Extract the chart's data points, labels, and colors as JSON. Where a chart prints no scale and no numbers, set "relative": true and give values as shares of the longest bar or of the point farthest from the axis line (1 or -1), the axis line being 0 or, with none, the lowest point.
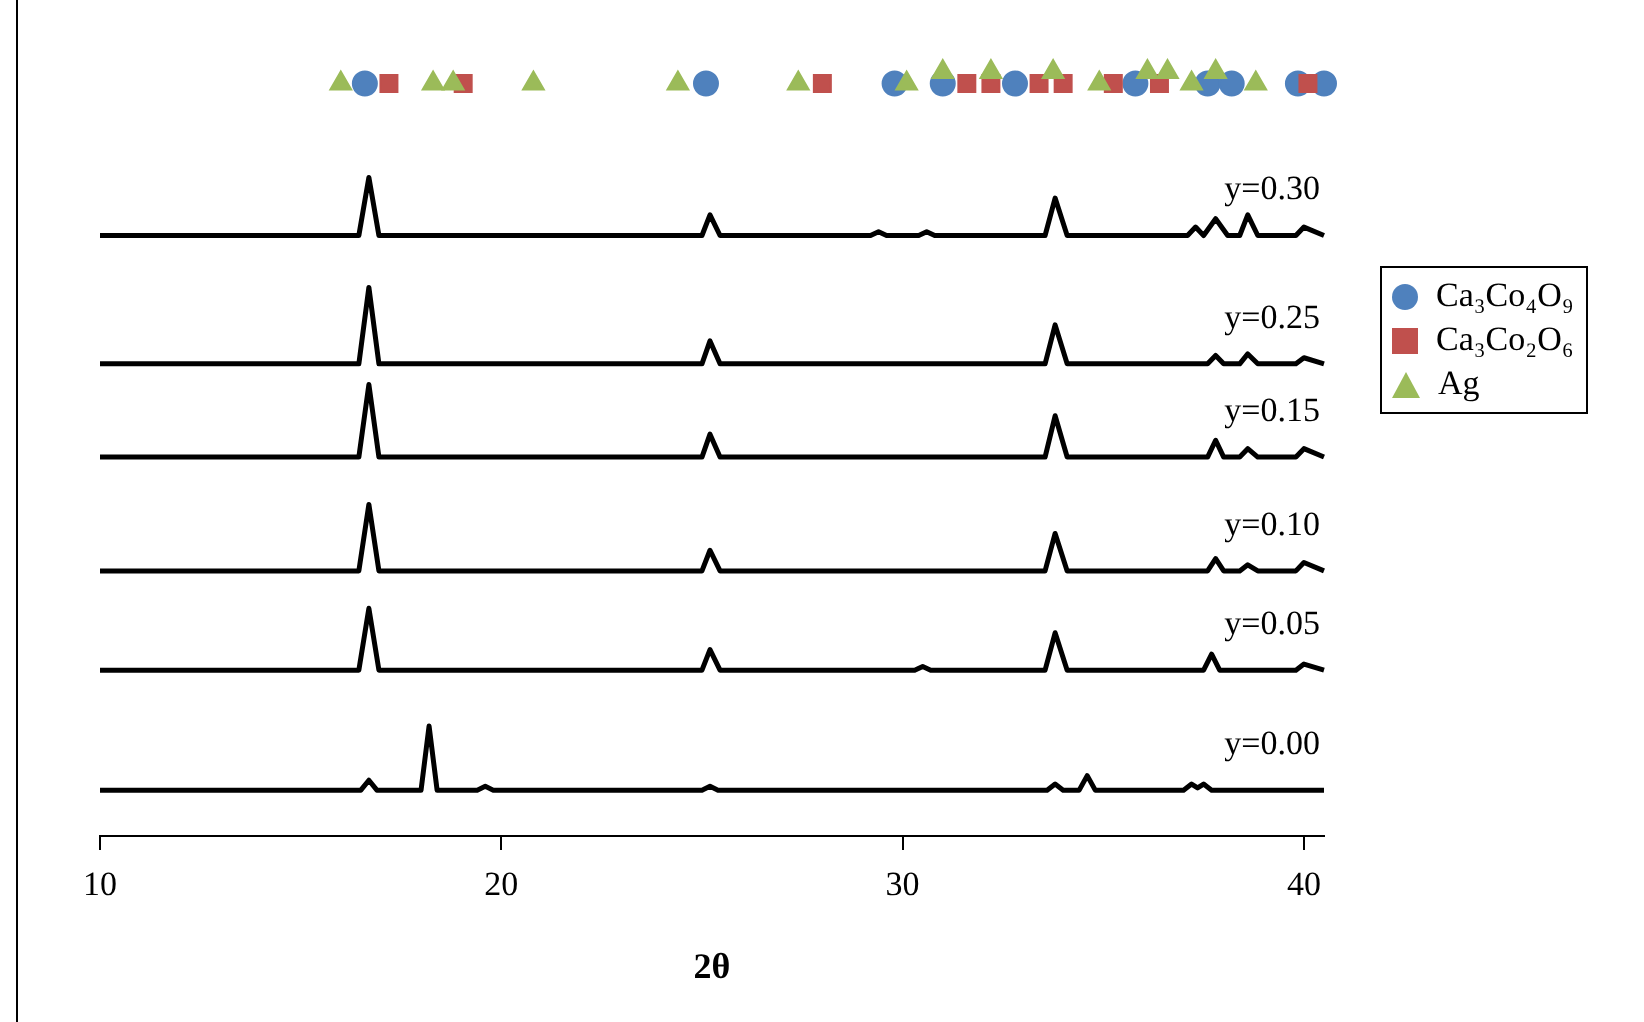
{
  "chart_data": {
    "type": "line",
    "relative": true,
    "xlabel": "2θ",
    "xlim": [
      10,
      40.5
    ],
    "xticks": [
      10,
      20,
      30,
      40
    ],
    "legend": "right",
    "series": [
      {
        "name": "y=0.30",
        "marker": "none",
        "color": "#000000",
        "x": [
          10,
          16.45,
          16.7,
          16.95,
          25.0,
          25.2,
          25.45,
          29.2,
          29.4,
          29.6,
          30.4,
          30.6,
          30.8,
          33.55,
          33.8,
          34.1,
          37.1,
          37.3,
          37.5,
          37.8,
          38.1,
          38.4,
          38.6,
          38.85,
          39.8,
          40.0,
          40.5
        ],
        "values": [
          0.786,
          0.786,
          0.862,
          0.786,
          0.786,
          0.813,
          0.786,
          0.786,
          0.791,
          0.786,
          0.786,
          0.791,
          0.786,
          0.786,
          0.835,
          0.786,
          0.786,
          0.797,
          0.786,
          0.808,
          0.786,
          0.786,
          0.813,
          0.786,
          0.786,
          0.797,
          0.786
        ]
      },
      {
        "name": "y=0.25",
        "marker": "none",
        "color": "#000000",
        "x": [
          10,
          16.45,
          16.7,
          16.95,
          25.0,
          25.2,
          25.45,
          33.55,
          33.8,
          34.1,
          37.6,
          37.8,
          38.0,
          38.4,
          38.6,
          38.85,
          39.8,
          40.0,
          40.5
        ],
        "values": [
          0.618,
          0.618,
          0.718,
          0.618,
          0.618,
          0.648,
          0.618,
          0.618,
          0.669,
          0.618,
          0.618,
          0.629,
          0.618,
          0.618,
          0.631,
          0.618,
          0.618,
          0.626,
          0.618
        ]
      },
      {
        "name": "y=0.15",
        "marker": "none",
        "color": "#000000",
        "x": [
          10,
          16.45,
          16.7,
          16.95,
          25.0,
          25.2,
          25.45,
          33.55,
          33.8,
          34.1,
          37.6,
          37.8,
          38.0,
          38.4,
          38.6,
          38.85,
          39.8,
          40.0,
          40.5
        ],
        "values": [
          0.496,
          0.496,
          0.591,
          0.496,
          0.496,
          0.526,
          0.496,
          0.496,
          0.55,
          0.496,
          0.496,
          0.518,
          0.496,
          0.496,
          0.507,
          0.496,
          0.496,
          0.507,
          0.496
        ]
      },
      {
        "name": "y=0.10",
        "marker": "none",
        "color": "#000000",
        "x": [
          10,
          16.45,
          16.7,
          16.95,
          25.0,
          25.2,
          25.45,
          33.55,
          33.8,
          34.1,
          37.6,
          37.8,
          38.0,
          38.4,
          38.6,
          38.85,
          39.8,
          40.0,
          40.5
        ],
        "values": [
          0.347,
          0.347,
          0.434,
          0.347,
          0.347,
          0.374,
          0.347,
          0.347,
          0.396,
          0.347,
          0.347,
          0.363,
          0.347,
          0.347,
          0.355,
          0.347,
          0.347,
          0.358,
          0.347
        ]
      },
      {
        "name": "y=0.05",
        "marker": "none",
        "color": "#000000",
        "x": [
          10,
          16.45,
          16.7,
          16.95,
          25.0,
          25.2,
          25.45,
          30.3,
          30.5,
          30.7,
          33.55,
          33.8,
          34.1,
          37.5,
          37.7,
          37.9,
          39.8,
          40.0,
          40.5
        ],
        "values": [
          0.217,
          0.217,
          0.298,
          0.217,
          0.217,
          0.244,
          0.217,
          0.217,
          0.222,
          0.217,
          0.217,
          0.266,
          0.217,
          0.217,
          0.238,
          0.217,
          0.217,
          0.225,
          0.217
        ]
      },
      {
        "name": "y=0.00",
        "marker": "none",
        "color": "#000000",
        "x": [
          10,
          16.5,
          16.7,
          16.9,
          18.0,
          18.2,
          18.4,
          19.4,
          19.6,
          19.8,
          25.0,
          25.2,
          25.4,
          33.6,
          33.8,
          34.0,
          34.4,
          34.6,
          34.8,
          37.0,
          37.2,
          37.35,
          37.5,
          37.7,
          40.5
        ],
        "values": [
          0.06,
          0.06,
          0.073,
          0.06,
          0.06,
          0.144,
          0.06,
          0.06,
          0.065,
          0.06,
          0.06,
          0.065,
          0.06,
          0.06,
          0.068,
          0.06,
          0.06,
          0.079,
          0.06,
          0.06,
          0.068,
          0.063,
          0.068,
          0.06,
          0.06
        ]
      },
      {
        "name": "Ca₃Co₄O₉",
        "type": "scatter",
        "marker": "circle",
        "color": "#4f81bd",
        "x": [
          16.6,
          25.1,
          29.8,
          31.0,
          32.8,
          35.8,
          37.6,
          38.2,
          39.85,
          40.5
        ],
        "values": [
          0.985,
          0.985,
          0.985,
          0.985,
          0.985,
          0.985,
          0.985,
          0.985,
          0.985,
          0.985
        ]
      },
      {
        "name": "Ca₃Co₂O₆",
        "type": "scatter",
        "marker": "square",
        "color": "#c0504d",
        "x": [
          17.2,
          19.05,
          28.0,
          31.6,
          32.2,
          33.4,
          34.0,
          35.25,
          36.4,
          40.1
        ],
        "values": [
          0.985,
          0.985,
          0.985,
          0.985,
          0.985,
          0.985,
          0.985,
          0.985,
          0.985,
          0.985
        ]
      },
      {
        "name": "Ag",
        "type": "scatter",
        "marker": "triangle",
        "color": "#9bbb59",
        "x": [
          16.0,
          18.3,
          18.8,
          20.8,
          24.4,
          27.4,
          30.1,
          31.0,
          32.2,
          33.75,
          34.9,
          36.1,
          36.6,
          37.2,
          37.8,
          38.8
        ],
        "values": [
          0.985,
          0.985,
          0.985,
          0.985,
          0.985,
          0.985,
          0.985,
          1,
          1,
          1,
          0.985,
          1,
          1,
          0.985,
          1,
          0.985
        ]
      }
    ]
  }
}
